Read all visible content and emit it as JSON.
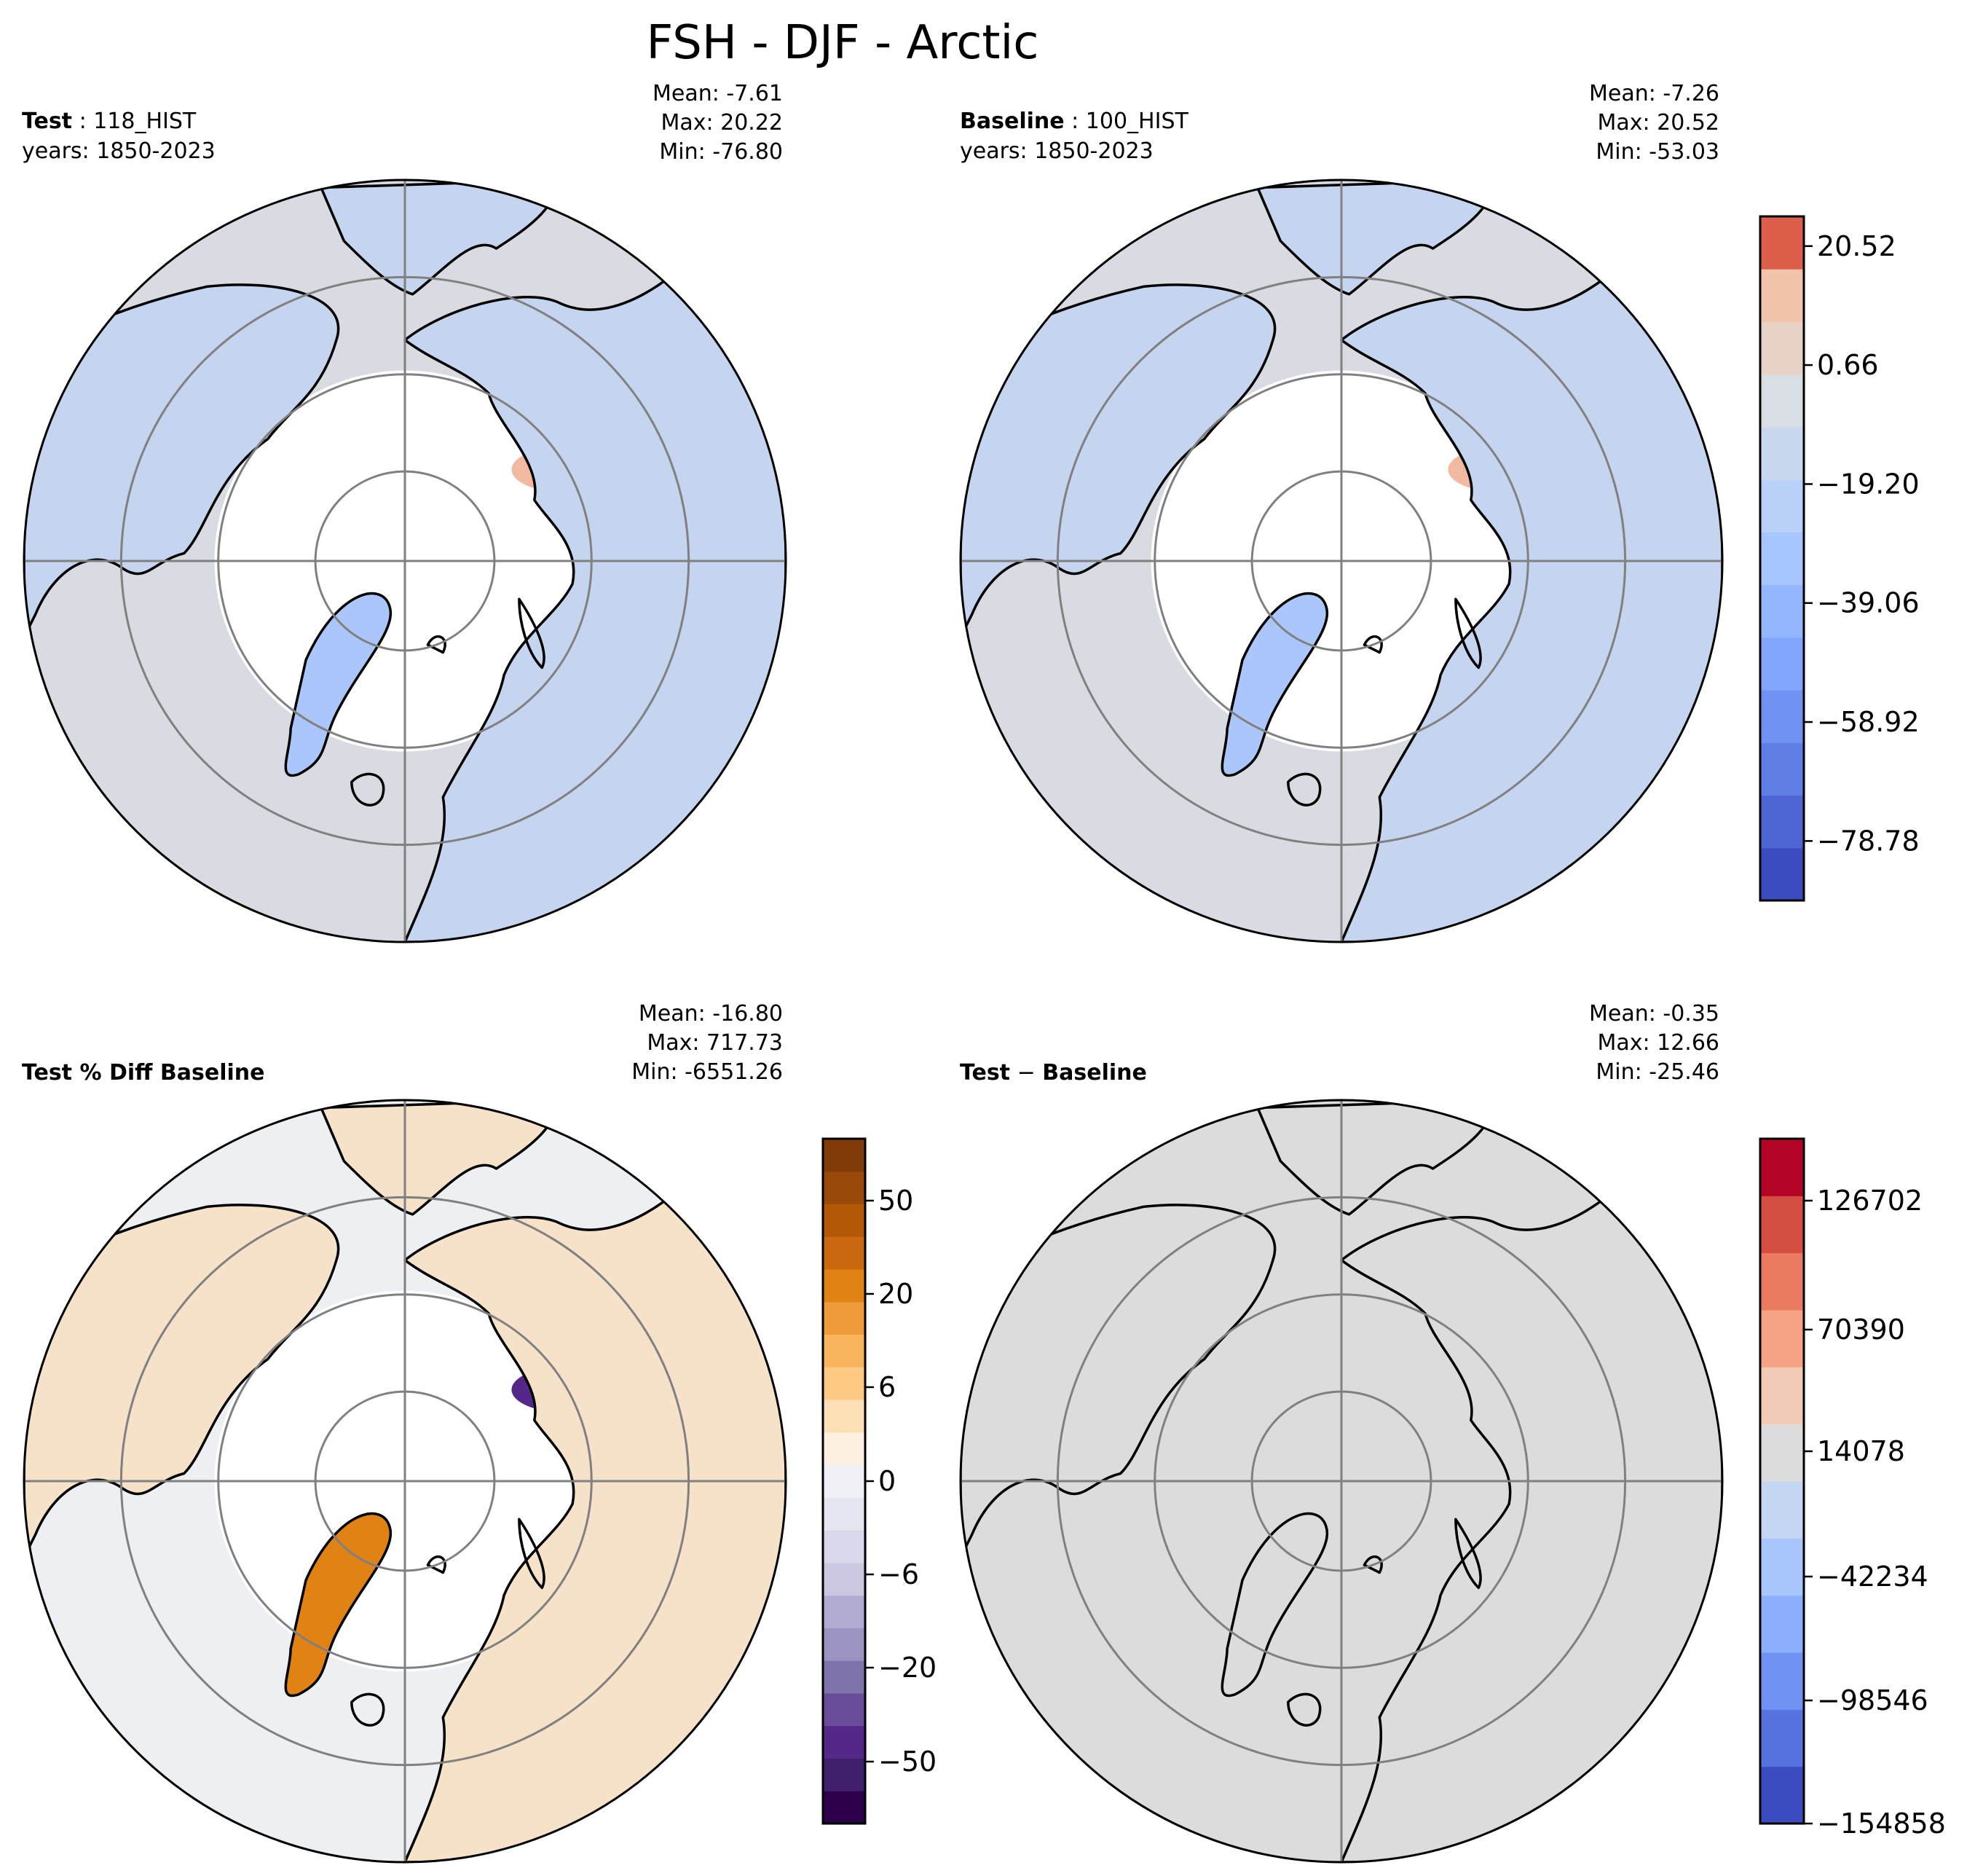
{
  "chart_data": {
    "type": "polar-contour-maps",
    "title": "FSH - DJF - Arctic",
    "panels": [
      {
        "id": "test",
        "label_bold": "Test",
        "label_rest": " : 118_HIST",
        "years": "years: 1850-2023",
        "stats": [
          "Mean: -7.61",
          "Max: 20.22",
          "Min: -76.80"
        ],
        "fill": "test"
      },
      {
        "id": "baseline",
        "label_bold": "Baseline",
        "label_rest": " : 100_HIST",
        "years": "years: 1850-2023",
        "stats": [
          "Mean: -7.26",
          "Max: 20.52",
          "Min: -53.03"
        ],
        "fill": "baseline"
      },
      {
        "id": "pctdiff",
        "label_bold": "Test % Diff Baseline",
        "label_rest": "",
        "years": "",
        "stats": [
          "Mean: -16.80",
          "Max: 717.73",
          "Min: -6551.26"
        ],
        "fill": "pctdiff"
      },
      {
        "id": "diff",
        "label_bold": "Test",
        "label_mid": " − ",
        "label_bold2": "Baseline",
        "years": "",
        "stats": [
          "Mean: -0.35",
          "Max: 12.66",
          "Min: -25.46"
        ],
        "fill": "diff"
      }
    ],
    "colorbars": [
      {
        "id": "main",
        "ticks": [
          "20.52",
          "0.66",
          "−19.20",
          "−39.06",
          "−58.92",
          "−78.78"
        ],
        "tick_values": [
          20.52,
          0.66,
          -19.2,
          -39.06,
          -58.92,
          -78.78
        ],
        "range": [
          -88.71,
          25.48
        ],
        "colors": [
          "#3b4cc0",
          "#4d66d4",
          "#5f7fe6",
          "#7093f3",
          "#82a6fb",
          "#94b6ff",
          "#a7c5fe",
          "#b9d0f9",
          "#cad8ef",
          "#d9dde4",
          "#e8d2c6",
          "#f2c4ab",
          "#dd5f4b"
        ]
      },
      {
        "id": "pct",
        "ticks": [
          "50",
          "20",
          "6",
          "0",
          "−6",
          "−20",
          "−50"
        ],
        "colors": [
          "#2d004b",
          "#3f1f6b",
          "#542788",
          "#6a4c9c",
          "#8073ac",
          "#9b93c1",
          "#b2abd2",
          "#cbc7e0",
          "#d8daeb",
          "#e5e6f0",
          "#f2f0f7",
          "#fdf0e0",
          "#fee0b6",
          "#fdc983",
          "#f9b55d",
          "#ee9b3c",
          "#e08214",
          "#c9680e",
          "#b35806",
          "#99490a",
          "#7f3b08"
        ]
      },
      {
        "id": "diffbar",
        "ticks": [
          "126702",
          "70390",
          "14078",
          "−42234",
          "−98546",
          "−154858"
        ],
        "colors": [
          "#3b4cc0",
          "#5673e0",
          "#6f92f3",
          "#8db0fe",
          "#a9c6fd",
          "#c5d6f2",
          "#dcdcdc",
          "#f2cbb7",
          "#f6a385",
          "#ea7b60",
          "#d44e41",
          "#b40426"
        ]
      }
    ],
    "colors": {
      "ocean_test": "#d8dce2",
      "land_blue": "#c5d4ef",
      "land_blue_dark": "#abc6fb",
      "warm": "#f2b9a1",
      "hot": "#dd5f4b",
      "gray_fill": "#dcdcdc",
      "pct_bg": "#eeeff3",
      "grid": "#808080"
    }
  }
}
